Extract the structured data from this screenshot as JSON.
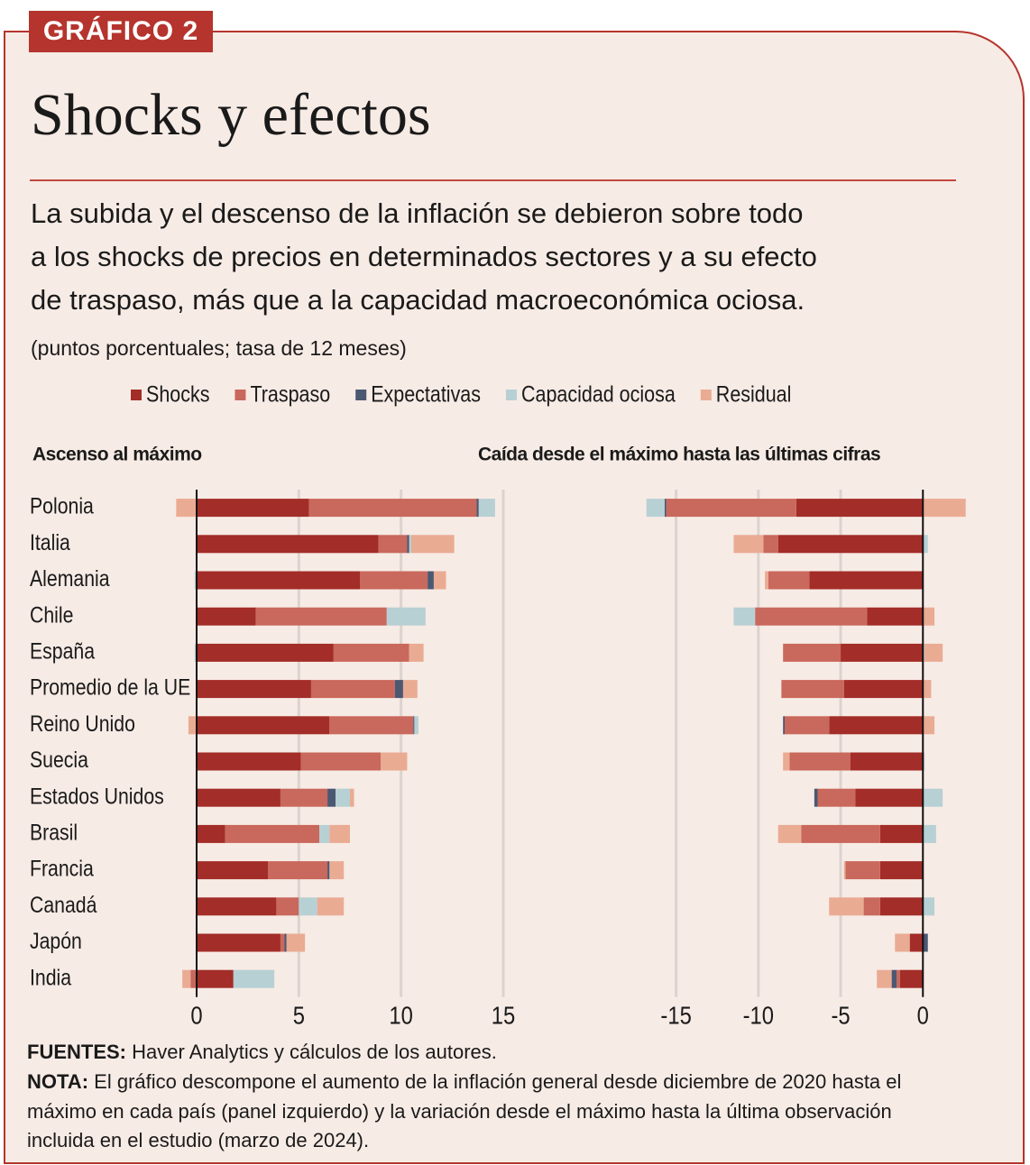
{
  "header": {
    "badge": "GRÁFICO 2",
    "title": "Shocks y efectos",
    "subtitle": [
      "La subida y el descenso de la inflación se debieron sobre todo",
      "a los shocks de precios en determinados sectores y a su efecto",
      "de traspaso, más que a la capacidad macroeconómica ociosa."
    ],
    "units": "(puntos porcentuales; tasa de 12 meses)"
  },
  "chart_data": [
    {
      "type": "bar",
      "orientation": "horizontal",
      "stacked": true,
      "title": "Ascenso al máximo",
      "categories": [
        "Polonia",
        "Italia",
        "Alemania",
        "Chile",
        "España",
        "Promedio de la UE",
        "Reino Unido",
        "Suecia",
        "Estados Unidos",
        "Brasil",
        "Francia",
        "Canadá",
        "Japón",
        "India"
      ],
      "series": [
        {
          "name": "Shocks",
          "color": "#a32d28",
          "values": [
            5.5,
            8.9,
            8.0,
            2.9,
            6.7,
            5.6,
            6.5,
            5.1,
            4.1,
            1.4,
            3.5,
            3.9,
            4.1,
            1.8
          ]
        },
        {
          "name": "Traspaso",
          "color": "#c9685c",
          "values": [
            8.2,
            1.4,
            3.3,
            6.4,
            3.7,
            4.1,
            4.1,
            3.9,
            2.3,
            4.6,
            2.9,
            1.1,
            0.2,
            -0.3
          ]
        },
        {
          "name": "Expectativas",
          "color": "#4b5872",
          "values": [
            0.1,
            0.1,
            0.3,
            0,
            0,
            0.4,
            0.05,
            0,
            0.4,
            0,
            0.1,
            0,
            0.1,
            0
          ]
        },
        {
          "name": "Capacidad ociosa",
          "color": "#b7d0d4",
          "values": [
            0.8,
            0.1,
            -0.1,
            1.9,
            -0.1,
            0,
            0.2,
            0,
            0.7,
            0.5,
            0,
            0.9,
            0,
            2.0
          ]
        },
        {
          "name": "Residual",
          "color": "#eaab93",
          "values": [
            -1.0,
            2.1,
            0.6,
            0,
            0.7,
            0.7,
            -0.4,
            1.3,
            0.2,
            1.0,
            0.7,
            1.3,
            0.9,
            -0.4
          ]
        }
      ],
      "xlim": [
        -1.5,
        16.5
      ],
      "xticks": [
        0,
        5,
        10,
        15
      ],
      "grid": true
    },
    {
      "type": "bar",
      "orientation": "horizontal",
      "stacked": true,
      "title": "Caída desde el máximo hasta las últimas cifras",
      "series": [
        {
          "name": "Shocks",
          "color": "#a32d28",
          "values": [
            -7.7,
            -8.8,
            -6.9,
            -3.4,
            -5.0,
            -4.8,
            -5.7,
            -4.4,
            -4.1,
            -2.6,
            -2.6,
            -2.6,
            -0.8,
            -1.4
          ]
        },
        {
          "name": "Traspaso",
          "color": "#c9685c",
          "values": [
            -7.9,
            -0.9,
            -2.5,
            -6.8,
            -3.5,
            -3.8,
            -2.7,
            -3.7,
            -2.3,
            -4.8,
            -2.1,
            -1.0,
            0,
            -0.2
          ]
        },
        {
          "name": "Expectativas",
          "color": "#4b5872",
          "values": [
            -0.1,
            0,
            0,
            0,
            0,
            0,
            -0.1,
            0,
            -0.2,
            0,
            0,
            0,
            0.3,
            -0.3
          ]
        },
        {
          "name": "Capacidad ociosa",
          "color": "#b7d0d4",
          "values": [
            -1.1,
            0.3,
            0,
            -1.3,
            0.1,
            0,
            0,
            0.1,
            1.2,
            0.8,
            0,
            0.7,
            0,
            0
          ]
        },
        {
          "name": "Residual",
          "color": "#eaab93",
          "values": [
            2.6,
            -1.8,
            -0.2,
            0.7,
            1.1,
            0.5,
            0.7,
            -0.4,
            0,
            -1.4,
            -0.1,
            -2.1,
            -0.9,
            -0.9
          ]
        }
      ],
      "xlim": [
        -17.5,
        3
      ],
      "xticks": [
        -15,
        -10,
        -5,
        0
      ],
      "grid": true
    }
  ],
  "footer": {
    "sources": {
      "label": "FUENTES:",
      "text": "Haver Analytics y cálculos de los autores."
    },
    "note": {
      "label": "NOTA:",
      "lines": [
        "El gráfico descompone el aumento de la inflación general desde diciembre de 2020 hasta el",
        "máximo en cada país (panel izquierdo) y la variación desde el máximo hasta la última observación",
        "incluida en el estudio (marzo de 2024)."
      ]
    }
  }
}
